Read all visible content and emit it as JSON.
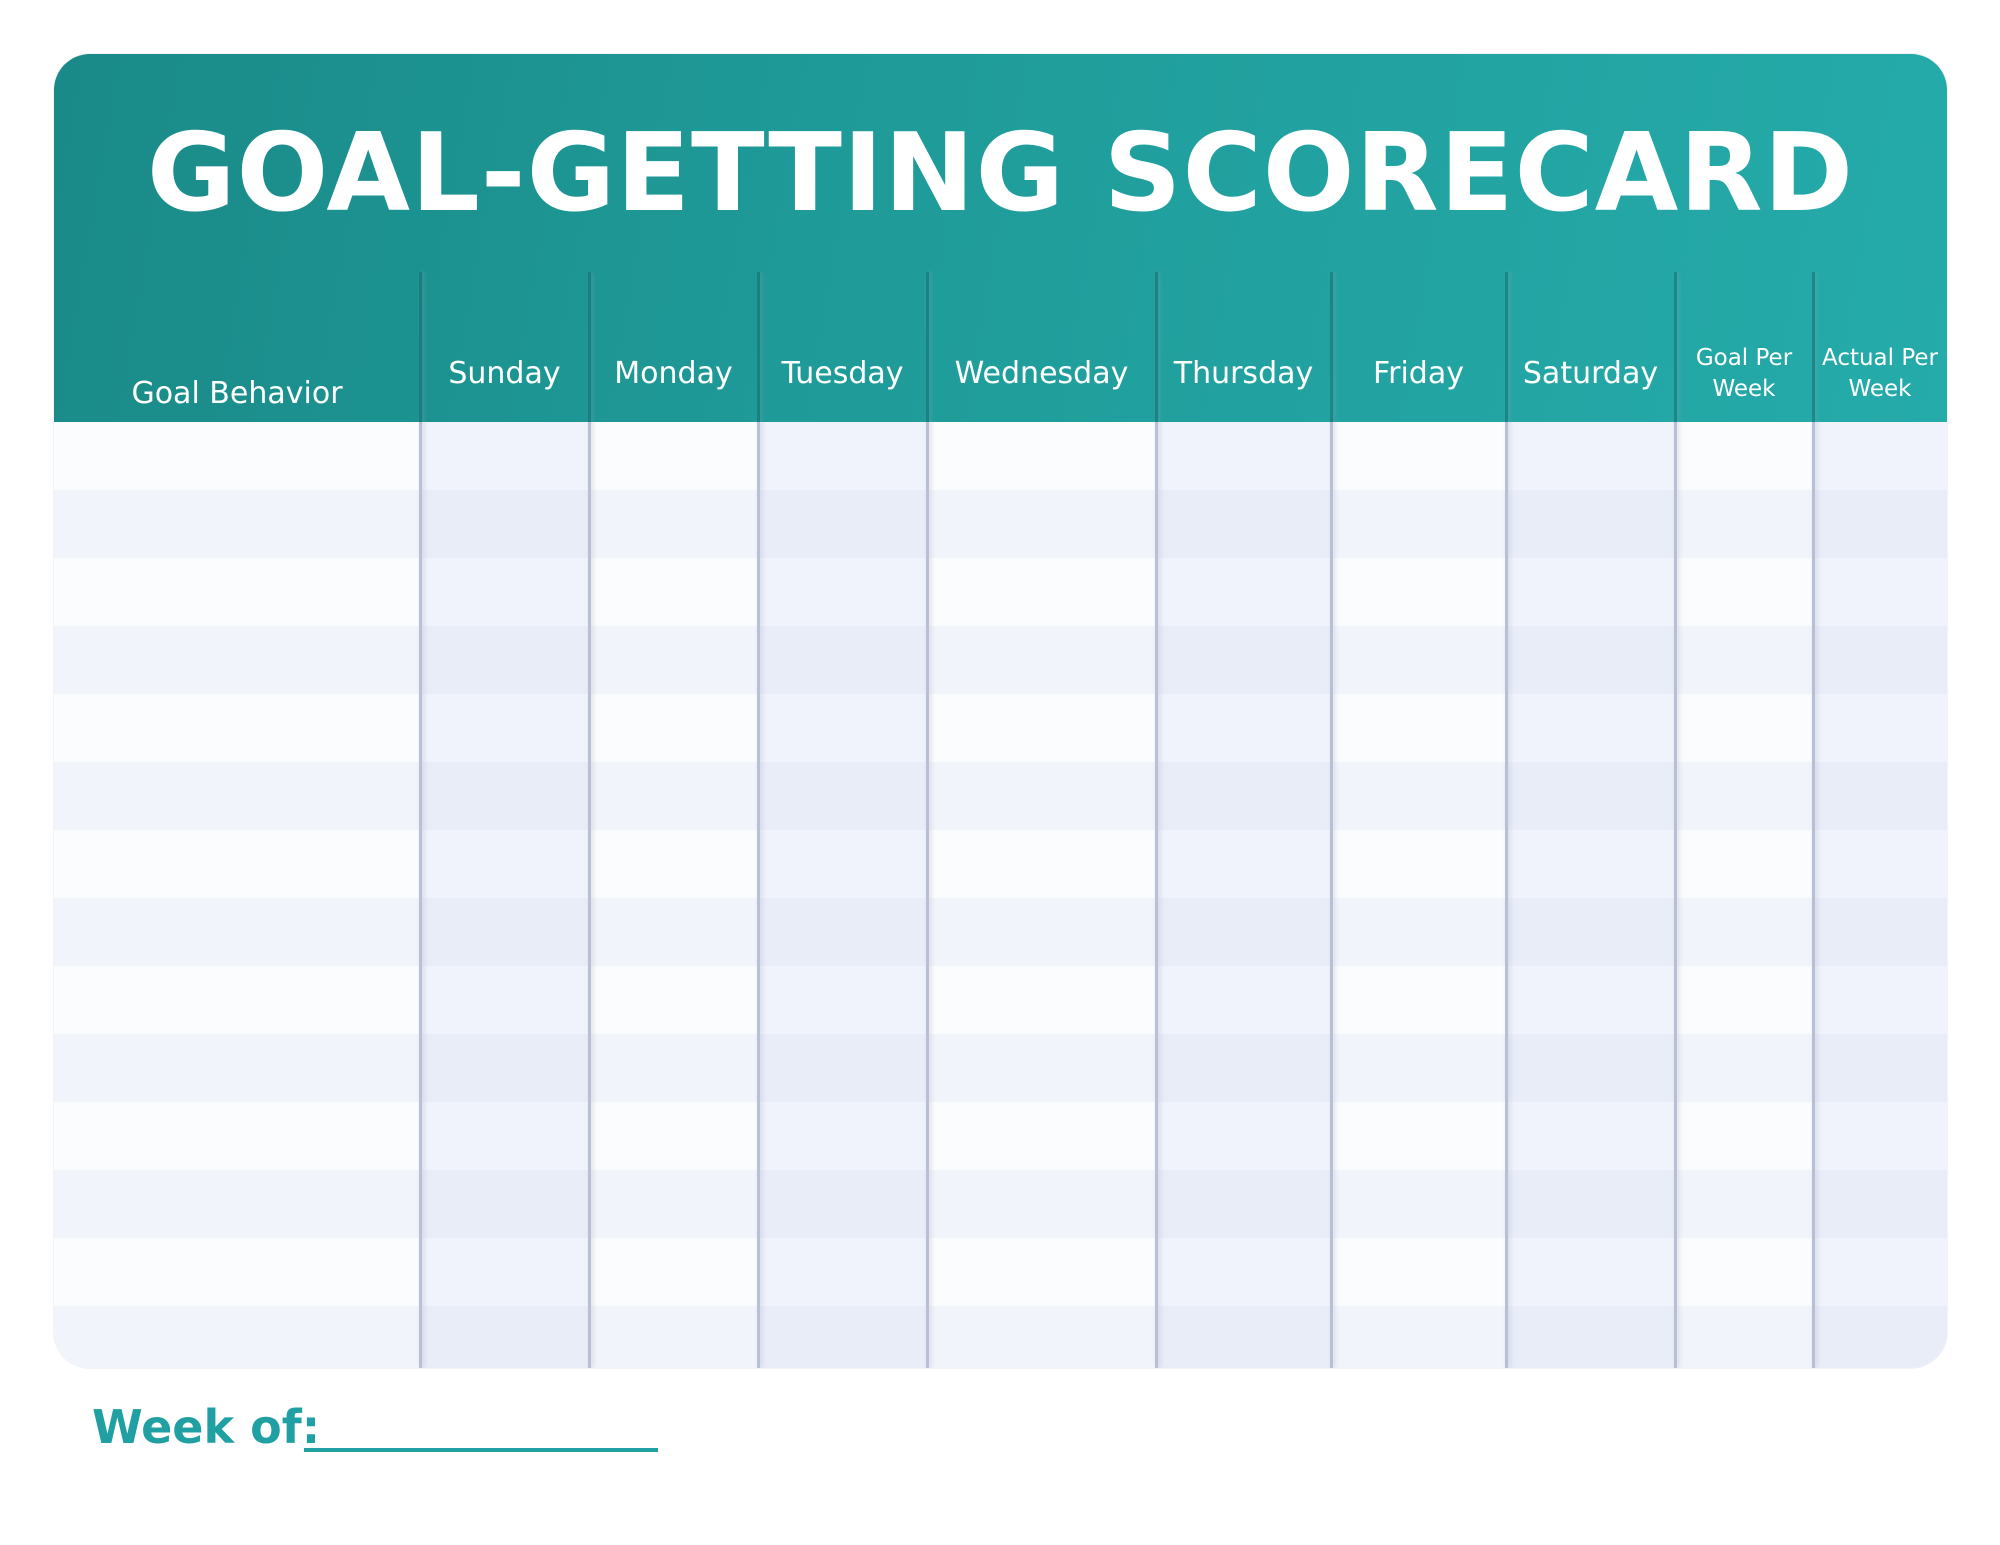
{
  "title": "GOAL-GETTING SCORECARD",
  "columns": [
    "Goal Behavior",
    "Sunday",
    "Monday",
    "Tuesday",
    "Wednesday",
    "Thursday",
    "Friday",
    "Saturday",
    "Goal Per Week",
    "Actual Per Week"
  ],
  "rows": [
    [
      "",
      "",
      "",
      "",
      "",
      "",
      "",
      "",
      "",
      ""
    ],
    [
      "",
      "",
      "",
      "",
      "",
      "",
      "",
      "",
      "",
      ""
    ],
    [
      "",
      "",
      "",
      "",
      "",
      "",
      "",
      "",
      "",
      ""
    ],
    [
      "",
      "",
      "",
      "",
      "",
      "",
      "",
      "",
      "",
      ""
    ],
    [
      "",
      "",
      "",
      "",
      "",
      "",
      "",
      "",
      "",
      ""
    ],
    [
      "",
      "",
      "",
      "",
      "",
      "",
      "",
      "",
      "",
      ""
    ],
    [
      "",
      "",
      "",
      "",
      "",
      "",
      "",
      "",
      "",
      ""
    ],
    [
      "",
      "",
      "",
      "",
      "",
      "",
      "",
      "",
      "",
      ""
    ],
    [
      "",
      "",
      "",
      "",
      "",
      "",
      "",
      "",
      "",
      ""
    ],
    [
      "",
      "",
      "",
      "",
      "",
      "",
      "",
      "",
      "",
      ""
    ],
    [
      "",
      "",
      "",
      "",
      "",
      "",
      "",
      "",
      "",
      ""
    ],
    [
      "",
      "",
      "",
      "",
      "",
      "",
      "",
      "",
      "",
      ""
    ],
    [
      "",
      "",
      "",
      "",
      "",
      "",
      "",
      "",
      "",
      ""
    ],
    [
      "",
      "",
      "",
      "",
      "",
      "",
      "",
      "",
      "",
      ""
    ]
  ],
  "footer": {
    "week_label": "Week of:",
    "week_value": ""
  },
  "colors": {
    "header": "#1f9c9a",
    "accent_text": "#20a0a2",
    "row_light": "#fbfcfe",
    "row_dark": "#f1f4fa",
    "divider": "#b9c0d6"
  }
}
